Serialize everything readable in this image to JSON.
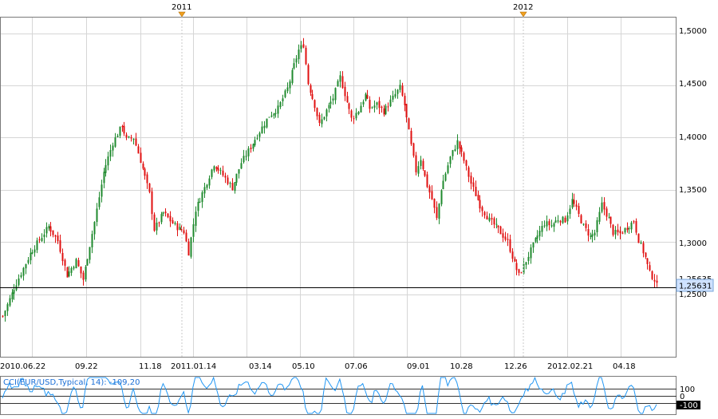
{
  "chart_data": [
    {
      "type": "candlestick",
      "series_name": "EUR/USD",
      "x_tick_labels": [
        "2010.06.22",
        "09.22",
        "11.18",
        "2011.01.14",
        "03.14",
        "05.10",
        "07.06",
        "09.01",
        "10.28",
        "12.26",
        "2012.02.21",
        "04.18"
      ],
      "top_year_markers": [
        "2011",
        "2012"
      ],
      "y_tick_labels": [
        "1,2500",
        "1,3000",
        "1,3500",
        "1,4000",
        "1,4500",
        "1,5000"
      ],
      "ylim": [
        1.19,
        1.515
      ],
      "current_price": 1.25631,
      "current_price_label": "1,25631",
      "hidden_price_label": "1,25635",
      "colors": {
        "up": "#1f8a2e",
        "down": "#e01010",
        "grid": "#d6d6d6",
        "price_tag": "#cfe2ff"
      },
      "close_path": [
        [
          0,
          1.229
        ],
        [
          5,
          1.256
        ],
        [
          12,
          1.289
        ],
        [
          20,
          1.315
        ],
        [
          24,
          1.301
        ],
        [
          28,
          1.268
        ],
        [
          32,
          1.282
        ],
        [
          35,
          1.264
        ],
        [
          40,
          1.319
        ],
        [
          44,
          1.367
        ],
        [
          48,
          1.395
        ],
        [
          52,
          1.412
        ],
        [
          54,
          1.398
        ],
        [
          57,
          1.4
        ],
        [
          60,
          1.378
        ],
        [
          64,
          1.346
        ],
        [
          66,
          1.312
        ],
        [
          70,
          1.328
        ],
        [
          74,
          1.318
        ],
        [
          76,
          1.314
        ],
        [
          79,
          1.31
        ],
        [
          81,
          1.29
        ],
        [
          84,
          1.331
        ],
        [
          88,
          1.352
        ],
        [
          92,
          1.375
        ],
        [
          96,
          1.364
        ],
        [
          100,
          1.352
        ],
        [
          104,
          1.376
        ],
        [
          108,
          1.391
        ],
        [
          112,
          1.406
        ],
        [
          116,
          1.421
        ],
        [
          120,
          1.428
        ],
        [
          124,
          1.447
        ],
        [
          126,
          1.462
        ],
        [
          129,
          1.484
        ],
        [
          131,
          1.489
        ],
        [
          133,
          1.452
        ],
        [
          136,
          1.431
        ],
        [
          138,
          1.412
        ],
        [
          141,
          1.426
        ],
        [
          144,
          1.438
        ],
        [
          147,
          1.458
        ],
        [
          149,
          1.442
        ],
        [
          152,
          1.418
        ],
        [
          155,
          1.426
        ],
        [
          158,
          1.441
        ],
        [
          160,
          1.428
        ],
        [
          163,
          1.432
        ],
        [
          166,
          1.425
        ],
        [
          170,
          1.438
        ],
        [
          173,
          1.448
        ],
        [
          175,
          1.431
        ],
        [
          178,
          1.392
        ],
        [
          180,
          1.368
        ],
        [
          182,
          1.38
        ],
        [
          185,
          1.354
        ],
        [
          187,
          1.341
        ],
        [
          189,
          1.322
        ],
        [
          191,
          1.351
        ],
        [
          195,
          1.381
        ],
        [
          198,
          1.396
        ],
        [
          201,
          1.378
        ],
        [
          204,
          1.356
        ],
        [
          208,
          1.335
        ],
        [
          212,
          1.321
        ],
        [
          216,
          1.312
        ],
        [
          220,
          1.3
        ],
        [
          223,
          1.279
        ],
        [
          225,
          1.268
        ],
        [
          227,
          1.277
        ],
        [
          230,
          1.292
        ],
        [
          233,
          1.306
        ],
        [
          236,
          1.318
        ],
        [
          239,
          1.316
        ],
        [
          242,
          1.322
        ],
        [
          245,
          1.321
        ],
        [
          248,
          1.34
        ],
        [
          250,
          1.331
        ],
        [
          253,
          1.315
        ],
        [
          256,
          1.305
        ],
        [
          258,
          1.309
        ],
        [
          261,
          1.336
        ],
        [
          264,
          1.322
        ],
        [
          266,
          1.309
        ],
        [
          269,
          1.308
        ],
        [
          272,
          1.314
        ],
        [
          275,
          1.32
        ],
        [
          277,
          1.302
        ],
        [
          280,
          1.285
        ],
        [
          282,
          1.27
        ],
        [
          284,
          1.264
        ],
        [
          285,
          1.258
        ]
      ]
    },
    {
      "type": "line",
      "series_name": "CCI",
      "label": "CCI(EUR/USD,Typical, 14): -109,20",
      "y_tick_labels": [
        "100",
        "0",
        "-100"
      ],
      "ylim": [
        -230,
        230
      ],
      "colors": {
        "line": "#2196f3",
        "levels": "#333333"
      }
    }
  ]
}
